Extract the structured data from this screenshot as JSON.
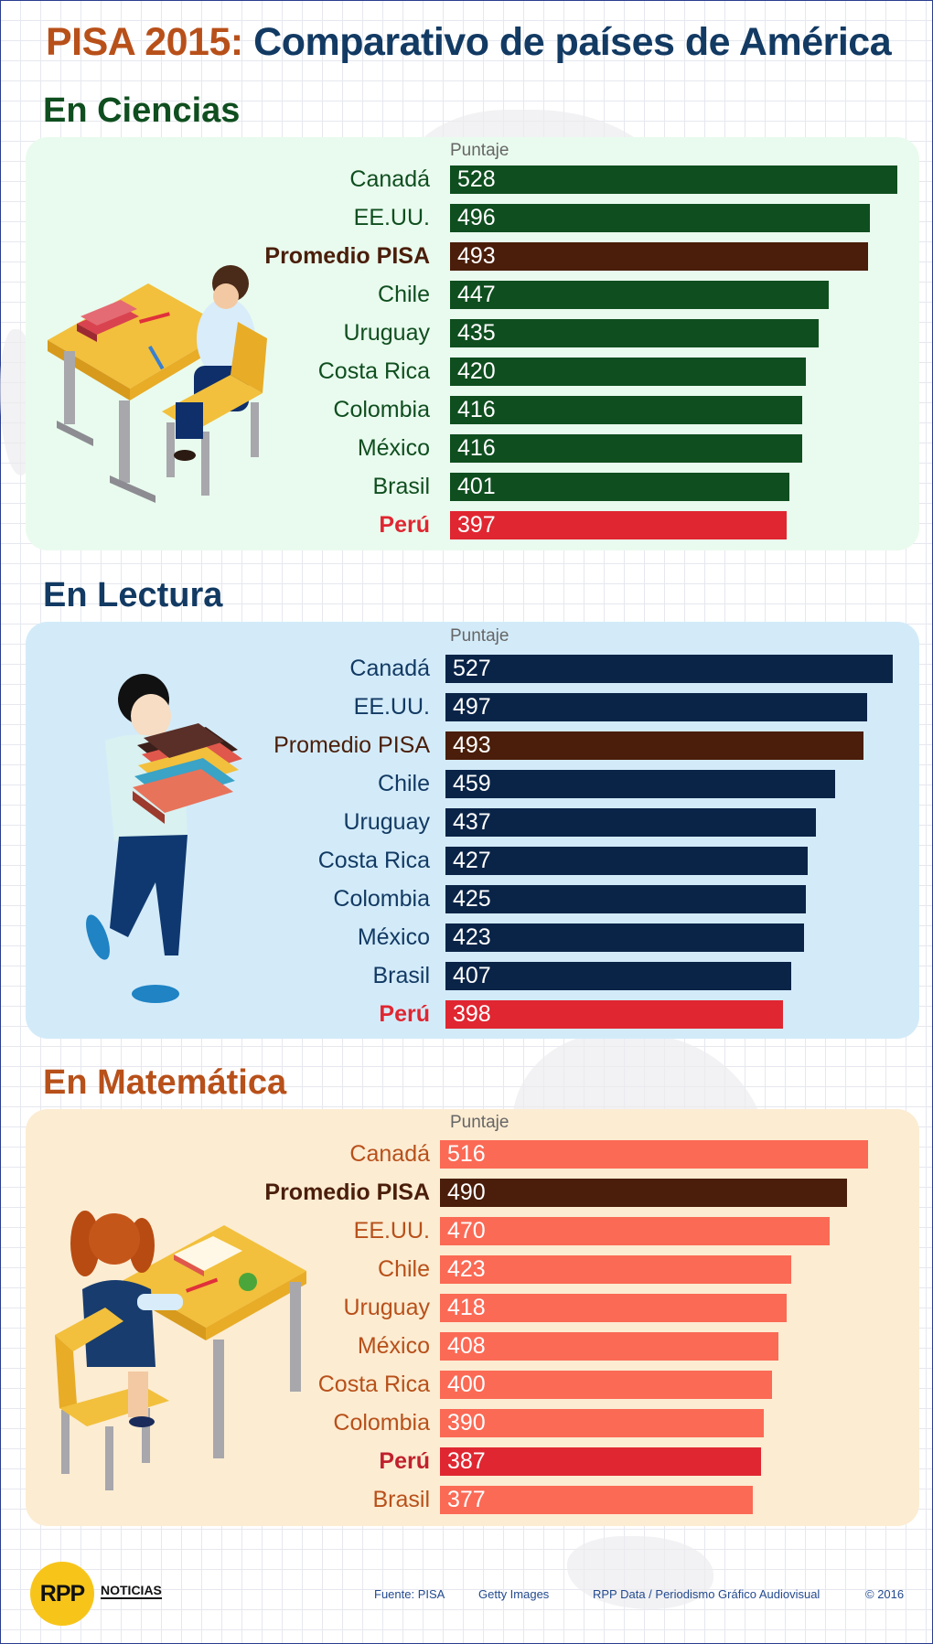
{
  "title": {
    "part1": "PISA 2015:",
    "part2": "Comparativo de países de América"
  },
  "colors": {
    "ciencias_bar": "#0f4e1f",
    "lectura_bar": "#0a2448",
    "matematica_bar": "#fb6a55",
    "promedio_bar": "#4a1e0a",
    "peru_bar": "#e02631",
    "ciencias_panel": "#e9fbee",
    "lectura_panel": "#d3ebf9",
    "matematica_panel": "#fcecd2",
    "ciencias_title": "#0f4e1f",
    "lectura_title": "#123a63",
    "matematica_title": "#b8501a"
  },
  "sections": [
    {
      "title": "En Ciencias",
      "puntaje": "Puntaje",
      "illustration": "student-at-desk-icon",
      "rows": [
        {
          "label": "Canadá",
          "value": 528,
          "kind": "country"
        },
        {
          "label": "EE.UU.",
          "value": 496,
          "kind": "country"
        },
        {
          "label": "Promedio PISA",
          "value": 493,
          "kind": "promedio"
        },
        {
          "label": "Chile",
          "value": 447,
          "kind": "country"
        },
        {
          "label": "Uruguay",
          "value": 435,
          "kind": "country"
        },
        {
          "label": "Costa Rica",
          "value": 420,
          "kind": "country"
        },
        {
          "label": "Colombia",
          "value": 416,
          "kind": "country"
        },
        {
          "label": "México",
          "value": 416,
          "kind": "country"
        },
        {
          "label": "Brasil",
          "value": 401,
          "kind": "country"
        },
        {
          "label": "Perú",
          "value": 397,
          "kind": "peru"
        }
      ]
    },
    {
      "title": "En Lectura",
      "puntaje": "Puntaje",
      "illustration": "student-carrying-books-icon",
      "rows": [
        {
          "label": "Canadá",
          "value": 527,
          "kind": "country"
        },
        {
          "label": "EE.UU.",
          "value": 497,
          "kind": "country"
        },
        {
          "label": "Promedio PISA",
          "value": 493,
          "kind": "promedio"
        },
        {
          "label": "Chile",
          "value": 459,
          "kind": "country"
        },
        {
          "label": "Uruguay",
          "value": 437,
          "kind": "country"
        },
        {
          "label": "Costa Rica",
          "value": 427,
          "kind": "country"
        },
        {
          "label": "Colombia",
          "value": 425,
          "kind": "country"
        },
        {
          "label": "México",
          "value": 423,
          "kind": "country"
        },
        {
          "label": "Brasil",
          "value": 407,
          "kind": "country"
        },
        {
          "label": "Perú",
          "value": 398,
          "kind": "peru"
        }
      ]
    },
    {
      "title": "En Matemática",
      "puntaje": "Puntaje",
      "illustration": "girl-reading-at-desk-icon",
      "rows": [
        {
          "label": "Canadá",
          "value": 516,
          "kind": "country"
        },
        {
          "label": "Promedio PISA",
          "value": 490,
          "kind": "promedio"
        },
        {
          "label": "EE.UU.",
          "value": 470,
          "kind": "country"
        },
        {
          "label": "Chile",
          "value": 423,
          "kind": "country"
        },
        {
          "label": "Uruguay",
          "value": 418,
          "kind": "country"
        },
        {
          "label": "México",
          "value": 408,
          "kind": "country"
        },
        {
          "label": "Costa Rica",
          "value": 400,
          "kind": "country"
        },
        {
          "label": "Colombia",
          "value": 390,
          "kind": "country"
        },
        {
          "label": "Perú",
          "value": 387,
          "kind": "peru"
        },
        {
          "label": "Brasil",
          "value": 377,
          "kind": "country"
        }
      ]
    }
  ],
  "chart_data": [
    {
      "type": "bar",
      "orientation": "horizontal",
      "title": "En Ciencias",
      "xlabel": "Puntaje",
      "categories": [
        "Canadá",
        "EE.UU.",
        "Promedio PISA",
        "Chile",
        "Uruguay",
        "Costa Rica",
        "Colombia",
        "México",
        "Brasil",
        "Perú"
      ],
      "values": [
        528,
        496,
        493,
        447,
        435,
        420,
        416,
        416,
        401,
        397
      ]
    },
    {
      "type": "bar",
      "orientation": "horizontal",
      "title": "En Lectura",
      "xlabel": "Puntaje",
      "categories": [
        "Canadá",
        "EE.UU.",
        "Promedio PISA",
        "Chile",
        "Uruguay",
        "Costa Rica",
        "Colombia",
        "México",
        "Brasil",
        "Perú"
      ],
      "values": [
        527,
        497,
        493,
        459,
        437,
        427,
        425,
        423,
        407,
        398
      ]
    },
    {
      "type": "bar",
      "orientation": "horizontal",
      "title": "En Matemática",
      "xlabel": "Puntaje",
      "categories": [
        "Canadá",
        "Promedio PISA",
        "EE.UU.",
        "Chile",
        "Uruguay",
        "México",
        "Costa Rica",
        "Colombia",
        "Perú",
        "Brasil"
      ],
      "values": [
        516,
        490,
        470,
        423,
        418,
        408,
        400,
        390,
        387,
        377
      ]
    }
  ],
  "footer": {
    "logo_text": "RPP",
    "logo_sub": "NOTICIAS",
    "fuente": "Fuente: PISA",
    "images": "Getty Images",
    "credit": "RPP Data / Periodismo Gráfico Audiovisual",
    "year": "© 2016"
  }
}
